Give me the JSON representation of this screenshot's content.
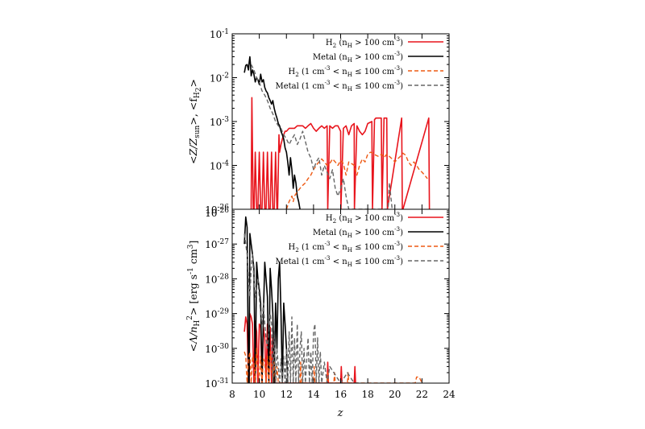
{
  "chart_data": [
    {
      "type": "line",
      "panel": "top",
      "ylabel": "<Z/Z_sun>, <f_H2>",
      "yscale": "log",
      "ylim": [
        1e-05,
        0.1
      ],
      "ytick_labels": [
        "10-26",
        "10-4",
        "10-3",
        "10-2",
        "10-1"
      ],
      "xlim": [
        8,
        24
      ],
      "legend_position": "top-right",
      "series": [
        {
          "name": "H2 (nH > 100 cm-3)",
          "color": "#e8141c",
          "dash": "solid",
          "x": [
            9.4,
            9.45,
            9.5,
            9.55,
            9.62,
            9.7,
            9.8,
            9.9,
            10.0,
            10.1,
            10.2,
            10.3,
            10.4,
            10.5,
            10.6,
            10.7,
            10.8,
            10.9,
            11.0,
            11.1,
            11.2,
            11.3,
            11.35,
            11.45,
            11.5,
            11.6,
            11.7,
            11.8,
            11.9,
            12.0,
            12.2,
            12.4,
            12.6,
            12.8,
            13.0,
            13.2,
            13.4,
            13.6,
            13.8,
            14.0,
            14.2,
            14.4,
            14.6,
            14.8,
            15.0,
            15.05,
            15.2,
            15.4,
            15.6,
            15.8,
            16.0,
            16.02,
            16.2,
            16.4,
            16.6,
            16.8,
            17.0,
            17.02,
            17.2,
            17.4,
            17.6,
            17.8,
            18.0,
            18.3,
            18.35,
            18.5,
            18.6,
            19.0,
            19.05,
            19.2,
            19.4,
            19.45,
            20.5,
            20.55,
            20.6,
            22.5,
            22.55,
            22.6
          ],
          "y": [
            1e-05,
            0.0035,
            0.0002,
            1e-05,
            1e-05,
            0.0002,
            1e-05,
            1e-05,
            0.0002,
            1e-05,
            1e-05,
            0.0002,
            1e-05,
            1e-05,
            0.0002,
            1e-05,
            1e-05,
            0.0002,
            1e-05,
            1e-05,
            0.0002,
            1e-05,
            1e-05,
            0.0005,
            0.0002,
            0.0003,
            0.0004,
            0.0005,
            0.0006,
            0.0006,
            0.0007,
            0.0007,
            0.0007,
            0.0008,
            0.0008,
            0.0008,
            0.0007,
            0.0008,
            0.0009,
            0.0007,
            0.0006,
            0.0007,
            0.0008,
            0.0007,
            0.0008,
            1e-05,
            0.0008,
            0.0007,
            0.0008,
            0.0008,
            0.0006,
            1e-05,
            0.0007,
            0.0008,
            0.0005,
            0.0008,
            0.0009,
            1e-05,
            0.0008,
            0.0006,
            0.0005,
            0.0006,
            0.0009,
            0.001,
            1e-05,
            0.0011,
            0.0012,
            0.0012,
            1e-05,
            0.0012,
            0.0012,
            1e-05,
            0.0012,
            1e-05,
            1e-05,
            0.0012,
            1e-05,
            1e-05
          ]
        },
        {
          "name": "Metal (nH > 100 cm-3)",
          "color": "#000000",
          "dash": "solid",
          "x": [
            8.9,
            9.0,
            9.1,
            9.2,
            9.25,
            9.3,
            9.35,
            9.4,
            9.5,
            9.6,
            9.7,
            9.8,
            9.9,
            10.0,
            10.1,
            10.2,
            10.3,
            10.4,
            10.5,
            10.6,
            10.7,
            10.8,
            10.9,
            11.0,
            11.1,
            11.2,
            11.3,
            11.4,
            11.5,
            11.6,
            11.7,
            11.8,
            11.9,
            12.0,
            12.1,
            12.2,
            12.3,
            12.4,
            12.5,
            12.6,
            12.7,
            12.8,
            12.9,
            13.0
          ],
          "y": [
            0.013,
            0.019,
            0.02,
            0.015,
            0.022,
            0.03,
            0.02,
            0.011,
            0.015,
            0.012,
            0.008,
            0.01,
            0.009,
            0.007,
            0.012,
            0.008,
            0.009,
            0.006,
            0.005,
            0.0045,
            0.0035,
            0.003,
            0.0025,
            0.003,
            0.002,
            0.0015,
            0.0012,
            0.0009,
            0.0008,
            0.0006,
            0.0005,
            0.0004,
            0.00025,
            0.0002,
            0.00012,
            6e-05,
            0.00015,
            8e-05,
            3e-05,
            6e-05,
            4e-05,
            2e-05,
            1.5e-05,
            1e-05
          ]
        },
        {
          "name": "H2 (1 cm-3 < nH ≤ 100 cm-3)",
          "color": "#ee5a14",
          "dash": "dashed",
          "x": [
            12.0,
            12.2,
            12.4,
            12.5,
            12.6,
            12.8,
            13.0,
            13.2,
            13.4,
            13.6,
            13.8,
            14.0,
            14.2,
            14.4,
            14.6,
            14.8,
            15.0,
            15.2,
            15.4,
            15.6,
            15.8,
            16.0,
            16.2,
            16.4,
            16.6,
            16.8,
            17.0,
            17.2,
            17.4,
            17.6,
            17.8,
            18.0,
            18.2,
            18.4,
            18.6,
            18.8,
            19.0,
            19.2,
            19.4,
            19.6,
            19.8,
            20.0,
            20.2,
            20.4,
            20.6,
            20.8,
            21.0,
            21.2,
            21.4,
            21.6,
            21.8,
            22.0,
            22.2,
            22.4
          ],
          "y": [
            1e-05,
            1.5e-05,
            2e-05,
            1.5e-05,
            2e-05,
            2.5e-05,
            3e-05,
            3.5e-05,
            4e-05,
            5e-05,
            6e-05,
            8e-05,
            0.0001,
            0.00012,
            0.00014,
            0.00012,
            0.0001,
            0.00011,
            0.00014,
            0.00012,
            0.0001,
            0.00013,
            0.00011,
            6e-05,
            0.00012,
            0.00011,
            0.0001,
            6e-05,
            0.0001,
            0.00014,
            0.00012,
            0.00018,
            0.0002,
            0.00019,
            0.00017,
            0.00016,
            0.00018,
            0.00015,
            0.00018,
            0.00016,
            0.00014,
            0.00012,
            0.00014,
            0.00016,
            0.00019,
            0.00017,
            0.00012,
            0.0001,
            0.00012,
            0.0001,
            8e-05,
            7e-05,
            6e-05,
            5e-05
          ]
        },
        {
          "name": "Metal (1 cm-3 < nH ≤ 100 cm-3)",
          "color": "#666666",
          "dash": "dashed",
          "x": [
            9.4,
            9.6,
            9.8,
            10.0,
            10.2,
            10.4,
            10.6,
            10.8,
            11.0,
            11.2,
            11.4,
            11.6,
            11.8,
            12.0,
            12.2,
            12.4,
            12.6,
            12.8,
            13.0,
            13.2,
            13.4,
            13.6,
            13.8,
            14.0,
            14.2,
            14.4,
            14.6,
            14.8,
            15.0,
            15.2,
            15.4,
            15.6,
            15.8,
            16.0,
            16.2,
            16.4,
            16.6,
            19.5,
            19.6,
            19.7,
            19.8
          ],
          "y": [
            0.02,
            0.015,
            0.01,
            0.008,
            0.005,
            0.004,
            0.003,
            0.002,
            0.0015,
            0.001,
            0.0008,
            0.0007,
            0.0005,
            0.0004,
            0.0003,
            0.0004,
            0.0005,
            0.0003,
            0.0004,
            0.0006,
            0.00035,
            0.0002,
            0.00015,
            8e-05,
            0.00012,
            0.00015,
            6e-05,
            0.0001,
            7e-05,
            5e-05,
            8e-05,
            3e-05,
            2e-05,
            3e-05,
            5e-05,
            2e-05,
            1e-05,
            1e-05,
            4e-05,
            2e-05,
            1e-05
          ]
        }
      ]
    },
    {
      "type": "line",
      "panel": "bottom",
      "ylabel": "<Λ/nH2> [erg s-1 cm3]",
      "yscale": "log",
      "ylim": [
        1e-31,
        1e-26
      ],
      "ytick_labels": [
        "10-31",
        "10-30",
        "10-29",
        "10-28",
        "10-27",
        "10-26"
      ],
      "xlim": [
        8,
        24
      ],
      "xticks": [
        8,
        10,
        12,
        14,
        16,
        18,
        20,
        22,
        24
      ],
      "xlabel": "z",
      "legend_position": "top-right",
      "series": [
        {
          "name": "H2 (nH > 100 cm-3)",
          "color": "#e8141c",
          "dash": "solid",
          "x": [
            8.9,
            9.0,
            9.1,
            9.2,
            9.25,
            9.3,
            9.4,
            9.5,
            9.6,
            9.7,
            9.8,
            9.9,
            10.0,
            10.1,
            10.2,
            10.3,
            10.4,
            10.5,
            10.6,
            10.7,
            10.8,
            10.9,
            11.0,
            11.05,
            15.0,
            15.05,
            15.1,
            16.0,
            16.05,
            16.1,
            17.0,
            17.05,
            17.1
          ],
          "y": [
            3e-30,
            8e-30,
            5e-30,
            1e-31,
            1e-31,
            1e-29,
            8e-30,
            5e-30,
            1e-31,
            6e-30,
            3e-30,
            1e-31,
            5e-30,
            4e-30,
            1e-31,
            4e-30,
            2e-30,
            1e-31,
            5e-30,
            1e-31,
            4e-30,
            1e-31,
            2e-30,
            1e-31,
            1e-31,
            4e-31,
            1e-31,
            1e-31,
            3e-31,
            1e-31,
            1e-31,
            3e-31,
            1e-31
          ]
        },
        {
          "name": "Metal (nH > 100 cm-3)",
          "color": "#000000",
          "dash": "solid",
          "x": [
            8.9,
            9.0,
            9.1,
            9.2,
            9.25,
            9.3,
            9.4,
            9.5,
            9.6,
            9.7,
            9.8,
            9.9,
            10.0,
            10.1,
            10.2,
            10.3,
            10.4,
            10.5,
            10.6,
            10.7,
            10.8,
            10.9,
            11.0,
            11.1,
            11.2,
            11.3,
            11.4,
            11.5,
            11.6,
            11.7,
            11.8,
            11.9,
            12.0,
            12.1
          ],
          "y": [
            1e-27,
            6e-27,
            3e-27,
            1e-31,
            1e-31,
            2e-27,
            1e-27,
            5e-28,
            2e-28,
            1e-31,
            3e-28,
            1e-28,
            5e-29,
            2e-29,
            1e-31,
            1e-29,
            3e-28,
            1e-28,
            3e-29,
            1e-31,
            2e-28,
            5e-29,
            1e-29,
            1e-31,
            2e-29,
            1e-30,
            1e-28,
            3e-28,
            1e-29,
            1e-31,
            2e-29,
            5e-30,
            1e-30,
            1e-31
          ]
        },
        {
          "name": "H2 (1 cm-3 < nH ≤ 100 cm-3)",
          "color": "#ee5a14",
          "dash": "dashed",
          "x": [
            8.9,
            9.0,
            9.1,
            9.2,
            9.3,
            9.4,
            9.5,
            9.6,
            9.7,
            9.8,
            9.9,
            10.0,
            10.1,
            10.2,
            10.3,
            10.4,
            10.5,
            10.6,
            10.7,
            10.8,
            10.9,
            11.0,
            11.1,
            11.2,
            11.3,
            11.4,
            13.0,
            13.05,
            13.1,
            14.0,
            14.05,
            14.1,
            15.0,
            15.05,
            15.1,
            15.5,
            15.55,
            15.6,
            16.5,
            16.55,
            16.6,
            21.5,
            21.6,
            21.8,
            22.0
          ],
          "y": [
            8e-31,
            6e-31,
            1e-31,
            5e-31,
            8e-31,
            1e-31,
            6e-31,
            4e-31,
            1e-31,
            1e-30,
            3e-31,
            1e-31,
            6e-31,
            1e-31,
            5e-31,
            4e-31,
            1e-31,
            6e-31,
            1e-31,
            8e-31,
            3e-31,
            1e-31,
            4e-31,
            1e-31,
            3e-31,
            1e-31,
            1e-31,
            4e-31,
            1e-31,
            1e-31,
            3e-31,
            1e-31,
            1e-31,
            2e-31,
            1e-31,
            1e-31,
            2e-31,
            1e-31,
            1e-31,
            2e-31,
            1e-31,
            1e-31,
            1.5e-31,
            1.5e-31,
            1e-31
          ]
        },
        {
          "name": "Metal (1 cm-3 < nH ≤ 100 cm-3)",
          "color": "#666666",
          "dash": "dashed",
          "x": [
            8.9,
            9.0,
            9.1,
            9.2,
            9.3,
            9.4,
            9.5,
            9.6,
            9.7,
            9.8,
            9.9,
            10.0,
            10.1,
            10.2,
            10.3,
            10.4,
            10.5,
            10.6,
            10.7,
            10.8,
            10.9,
            11.0,
            11.1,
            11.2,
            11.3,
            11.4,
            11.5,
            11.6,
            11.7,
            11.8,
            11.9,
            12.0,
            12.1,
            12.2,
            12.3,
            12.4,
            12.5,
            12.6,
            12.7,
            12.8,
            12.9,
            13.0,
            13.1,
            13.2,
            13.3,
            13.4,
            13.5,
            13.6,
            13.7,
            13.8,
            13.9,
            14.0,
            14.1,
            14.2,
            14.3,
            14.4,
            14.5,
            14.6,
            14.8,
            15.0,
            15.2,
            15.5,
            16.0,
            16.5,
            17.0,
            17.5
          ],
          "y": [
            2e-27,
            1e-27,
            5e-28,
            1e-28,
            3e-29,
            2e-28,
            5e-28,
            1e-28,
            3e-29,
            5e-29,
            1e-28,
            3e-29,
            1e-29,
            5e-30,
            2e-29,
            5e-30,
            2e-30,
            1e-30,
            3e-30,
            1e-29,
            5e-30,
            1e-31,
            3e-30,
            1e-31,
            1e-30,
            3e-31,
            1e-31,
            5e-31,
            1e-31,
            6e-31,
            1e-31,
            1e-30,
            1e-31,
            3e-30,
            1e-31,
            8e-30,
            1e-31,
            2e-30,
            1e-31,
            5e-30,
            1e-31,
            1e-30,
            3e-30,
            1e-31,
            1e-30,
            1e-31,
            5e-31,
            2e-30,
            1e-31,
            8e-31,
            1e-31,
            3e-30,
            5e-30,
            1e-31,
            2e-30,
            1e-31,
            8e-31,
            1e-31,
            4e-31,
            1e-31,
            3e-31,
            2e-31,
            1e-31,
            2e-31,
            1e-31,
            1e-31
          ]
        }
      ]
    }
  ]
}
